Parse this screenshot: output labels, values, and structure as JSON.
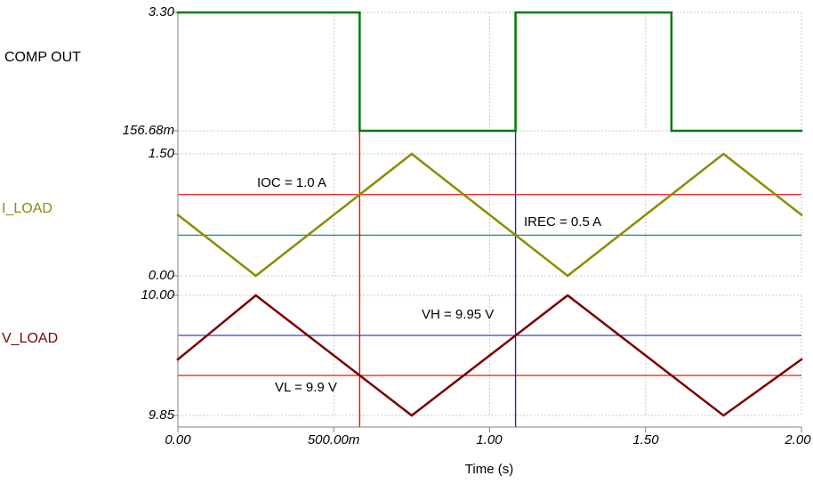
{
  "xaxis": {
    "label": "Time (s)",
    "range": [
      0,
      2
    ],
    "grid_step": 0.5,
    "ticks": [
      {
        "value": 0.0,
        "label": "0.00"
      },
      {
        "value": 0.5,
        "label": "500.00m"
      },
      {
        "value": 1.0,
        "label": "1.00"
      },
      {
        "value": 1.5,
        "label": "1.50"
      },
      {
        "value": 2.0,
        "label": "2.00"
      }
    ]
  },
  "cursors": [
    {
      "name": "cursor-red",
      "time": 0.583,
      "color": "#ff0000"
    },
    {
      "name": "cursor-blue",
      "time": 1.083,
      "color": "#2222cc"
    }
  ],
  "colors": {
    "grid": "#c9c9c9",
    "axis": "#808080"
  },
  "chart_data": [
    {
      "type": "line",
      "name": "COMP OUT",
      "color": "#007a00",
      "label_color": "#000000",
      "ylim": [
        0.15668,
        3.3
      ],
      "yticks": [
        {
          "value": 3.3,
          "label": "3.30"
        },
        {
          "value": 0.15668,
          "label": "156.68m"
        }
      ],
      "x": [
        0,
        0.583,
        0.583,
        1.083,
        1.083,
        1.583,
        1.583,
        2.0
      ],
      "y": [
        3.3,
        3.3,
        0.15668,
        0.15668,
        3.3,
        3.3,
        0.15668,
        0.15668
      ]
    },
    {
      "type": "line",
      "name": "I_LOAD",
      "color": "#8c8c00",
      "label_color": "#8c8c00",
      "ylim": [
        0.0,
        1.5
      ],
      "yticks": [
        {
          "value": 1.5,
          "label": "1.50"
        },
        {
          "value": 0.0,
          "label": "0.00"
        }
      ],
      "x": [
        0,
        0.25,
        0.75,
        1.25,
        1.75,
        2.0
      ],
      "y": [
        0.75,
        0.0,
        1.5,
        0.0,
        1.5,
        0.75
      ],
      "ref_lines": [
        {
          "value": 1.0,
          "color": "#ee1111",
          "label": "IOC = 1.0 A"
        },
        {
          "value": 0.5,
          "color": "#008080",
          "label": "IREC = 0.5 A"
        }
      ]
    },
    {
      "type": "line",
      "name": "V_LOAD",
      "color": "#7d0000",
      "label_color": "#7d0000",
      "ylim": [
        9.85,
        10.0
      ],
      "yticks": [
        {
          "value": 10.0,
          "label": "10.00"
        },
        {
          "value": 9.85,
          "label": "9.85"
        }
      ],
      "x": [
        0,
        0.25,
        0.75,
        1.25,
        1.75,
        2.0
      ],
      "y": [
        9.92,
        10.0,
        9.85,
        10.0,
        9.85,
        9.92
      ],
      "ref_lines": [
        {
          "value": 9.95,
          "color": "#3344cc",
          "label": "VH = 9.95 V"
        },
        {
          "value": 9.9,
          "color": "#ee1111",
          "label": "VL = 9.9 V"
        }
      ]
    }
  ]
}
